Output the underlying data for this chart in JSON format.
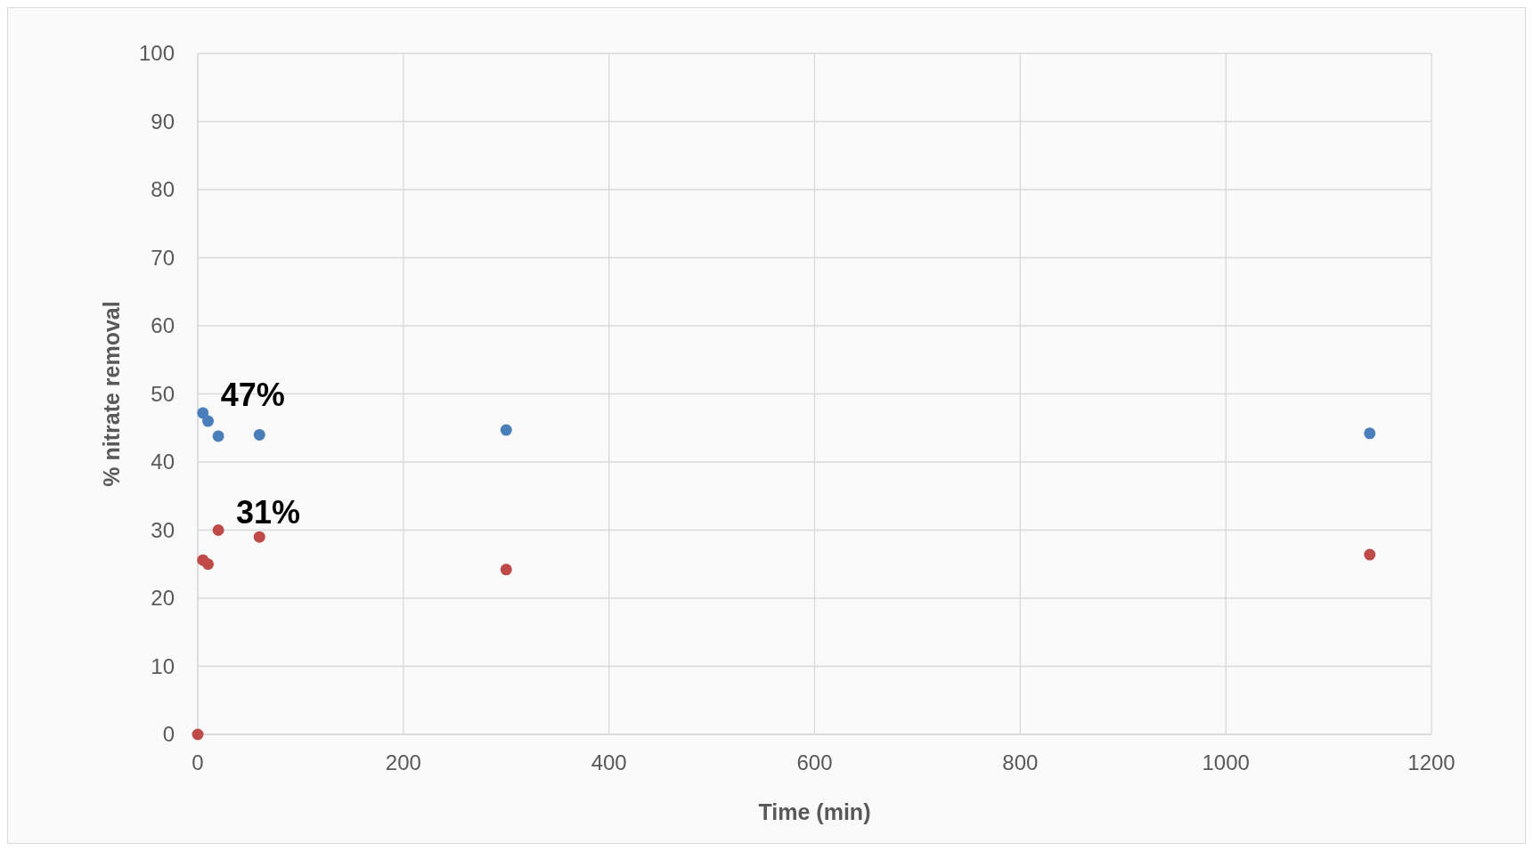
{
  "chart_data": {
    "type": "scatter",
    "xlabel": "Time (min)",
    "ylabel": "% nitrate removal",
    "xlim": [
      0,
      1200
    ],
    "xticks": [
      0,
      200,
      400,
      600,
      800,
      1000,
      1200
    ],
    "ylim": [
      0,
      100
    ],
    "yticks": [
      0,
      10,
      20,
      30,
      40,
      50,
      60,
      70,
      80,
      90,
      100
    ],
    "grid": true,
    "marker": "circle",
    "series": [
      {
        "color": "#4a7ebb",
        "x": [
          5,
          10,
          20,
          60,
          300,
          1140
        ],
        "values": [
          47.2,
          46,
          43.8,
          44,
          44.7,
          44.2
        ]
      },
      {
        "color": "#be4b48",
        "x": [
          0,
          5,
          10,
          20,
          60,
          300,
          1140
        ],
        "values": [
          0,
          25.6,
          25,
          30,
          29,
          24.2,
          26.4
        ]
      }
    ],
    "annotations": [
      {
        "text": "47%",
        "x": 5,
        "y": 47.2
      },
      {
        "text": "31%",
        "x": 20,
        "y": 30
      }
    ]
  }
}
